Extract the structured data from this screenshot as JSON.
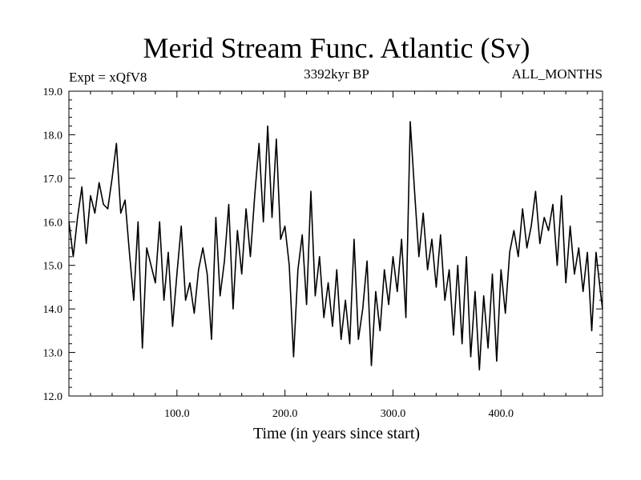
{
  "chart_data": {
    "type": "line",
    "title": "Merid Stream Func. Atlantic (Sv)",
    "subtitle": "3392kyr BP",
    "left_label": "Expt = xQfV8",
    "right_label": "ALL_MONTHS",
    "xlabel": "Time (in years since start)",
    "ylabel": "",
    "xlim": [
      0,
      494
    ],
    "ylim": [
      12.0,
      19.0
    ],
    "x_ticks": [
      100.0,
      200.0,
      300.0,
      400.0
    ],
    "x_tick_labels": [
      "100.0",
      "200.0",
      "300.0",
      "400.0"
    ],
    "y_ticks": [
      12.0,
      13.0,
      14.0,
      15.0,
      16.0,
      17.0,
      18.0,
      19.0
    ],
    "y_tick_labels": [
      "12.0",
      "13.0",
      "14.0",
      "15.0",
      "16.0",
      "17.0",
      "18.0",
      "19.0"
    ],
    "grid": false,
    "series": [
      {
        "name": "Merid Stream Func. Atlantic",
        "x": [
          0,
          4,
          8,
          12,
          16,
          20,
          24,
          28,
          32,
          36,
          40,
          44,
          48,
          52,
          56,
          60,
          64,
          68,
          72,
          76,
          80,
          84,
          88,
          92,
          96,
          100,
          104,
          108,
          112,
          116,
          120,
          124,
          128,
          132,
          136,
          140,
          144,
          148,
          152,
          156,
          160,
          164,
          168,
          172,
          176,
          180,
          184,
          188,
          192,
          196,
          200,
          204,
          208,
          212,
          216,
          220,
          224,
          228,
          232,
          236,
          240,
          244,
          248,
          252,
          256,
          260,
          264,
          268,
          272,
          276,
          280,
          284,
          288,
          292,
          296,
          300,
          304,
          308,
          312,
          316,
          320,
          324,
          328,
          332,
          336,
          340,
          344,
          348,
          352,
          356,
          360,
          364,
          368,
          372,
          376,
          380,
          384,
          388,
          392,
          396,
          400,
          404,
          408,
          412,
          416,
          420,
          424,
          428,
          432,
          436,
          440,
          444,
          448,
          452,
          456,
          460,
          464,
          468,
          472,
          476,
          480,
          484,
          488,
          492,
          494
        ],
        "values": [
          16.0,
          15.2,
          16.1,
          16.8,
          15.5,
          16.6,
          16.2,
          16.9,
          16.4,
          16.3,
          17.0,
          17.8,
          16.2,
          16.5,
          15.3,
          14.2,
          16.0,
          13.1,
          15.4,
          15.0,
          14.6,
          16.0,
          14.2,
          15.3,
          13.6,
          14.8,
          15.9,
          14.2,
          14.6,
          13.9,
          14.9,
          15.4,
          14.8,
          13.3,
          16.1,
          14.3,
          15.1,
          16.4,
          14.0,
          15.8,
          14.8,
          16.3,
          15.2,
          16.6,
          17.8,
          16.0,
          18.2,
          16.1,
          17.9,
          15.6,
          15.9,
          15.0,
          12.9,
          14.9,
          15.7,
          14.1,
          16.7,
          14.3,
          15.2,
          13.8,
          14.6,
          13.6,
          14.9,
          13.3,
          14.2,
          13.2,
          15.6,
          13.3,
          14.0,
          15.1,
          12.7,
          14.4,
          13.5,
          14.9,
          14.1,
          15.2,
          14.4,
          15.6,
          13.8,
          18.3,
          16.7,
          15.2,
          16.2,
          14.9,
          15.6,
          14.5,
          15.7,
          14.2,
          14.9,
          13.4,
          15.0,
          13.2,
          15.2,
          12.9,
          14.4,
          12.6,
          14.3,
          13.1,
          14.8,
          12.8,
          14.9,
          13.9,
          15.3,
          15.8,
          15.2,
          16.3,
          15.4,
          15.9,
          16.7,
          15.5,
          16.1,
          15.8,
          16.4,
          15.0,
          16.6,
          14.6,
          15.9,
          14.8,
          15.4,
          14.4,
          15.3,
          13.5,
          15.3,
          14.4,
          14.0
        ]
      }
    ]
  }
}
